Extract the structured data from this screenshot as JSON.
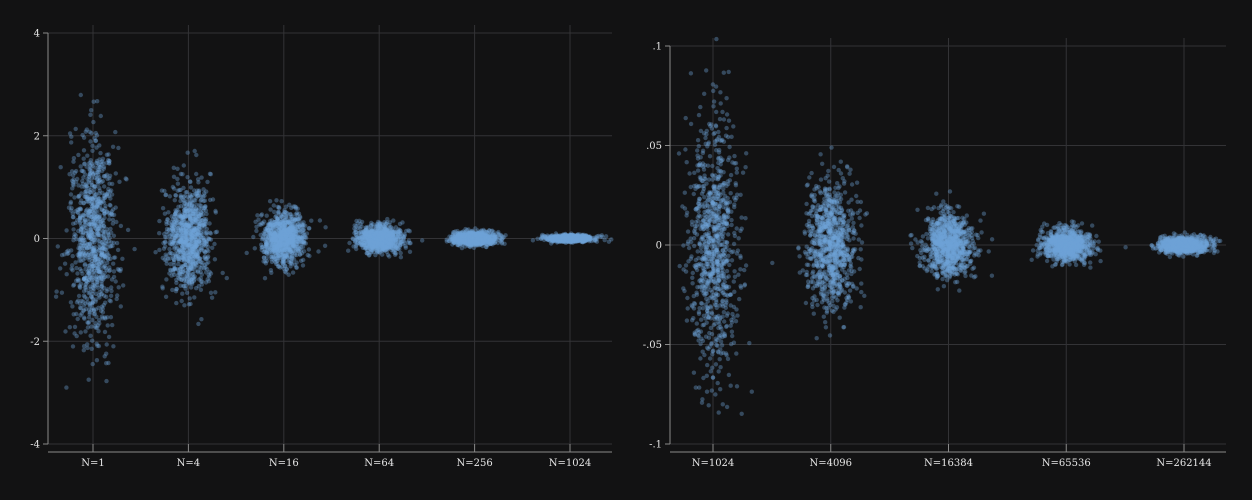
{
  "colors": {
    "background": "#121213",
    "point": "#6fa3d8",
    "grid": "#333336",
    "axis": "#8a8a8a",
    "text": "#e6e6e6"
  },
  "chart_data": [
    {
      "type": "scatter",
      "title": "",
      "xlabel": "",
      "ylabel": "",
      "grid": true,
      "categories": [
        "N=1",
        "N=4",
        "N=16",
        "N=64",
        "N=256",
        "N=1024"
      ],
      "ylim": [
        -4,
        4
      ],
      "yticks": [
        4,
        2,
        0,
        -2,
        -4
      ],
      "ytick_labels": [
        "4",
        "2",
        "0",
        "-2",
        "-4"
      ],
      "series_spread": [
        {
          "category": "N=1",
          "sd_y": 1.0,
          "y_min": -3.0,
          "y_max": 3.2,
          "points": 900
        },
        {
          "category": "N=4",
          "sd_y": 0.5,
          "y_min": -1.7,
          "y_max": 1.8,
          "points": 900
        },
        {
          "category": "N=16",
          "sd_y": 0.25,
          "y_min": -0.8,
          "y_max": 0.75,
          "points": 900
        },
        {
          "category": "N=64",
          "sd_y": 0.125,
          "y_min": -0.45,
          "y_max": 0.42,
          "points": 900
        },
        {
          "category": "N=256",
          "sd_y": 0.0625,
          "y_min": -0.22,
          "y_max": 0.2,
          "points": 900
        },
        {
          "category": "N=1024",
          "sd_y": 0.03125,
          "y_min": -0.1,
          "y_max": 0.1,
          "points": 900
        }
      ]
    },
    {
      "type": "scatter",
      "title": "",
      "xlabel": "",
      "ylabel": "",
      "grid": true,
      "categories": [
        "N=1024",
        "N=4096",
        "N=16384",
        "N=65536",
        "N=262144"
      ],
      "ylim": [
        -0.1,
        0.1
      ],
      "yticks": [
        0.1,
        0.05,
        0,
        -0.05,
        -0.1
      ],
      "ytick_labels": [
        ".1",
        ".05",
        "0",
        "-.05",
        "-.1"
      ],
      "series_spread": [
        {
          "category": "N=1024",
          "sd_y": 0.03125,
          "y_min": -0.085,
          "y_max": 0.107,
          "points": 900
        },
        {
          "category": "N=4096",
          "sd_y": 0.0156,
          "y_min": -0.047,
          "y_max": 0.06,
          "points": 900
        },
        {
          "category": "N=16384",
          "sd_y": 0.0078,
          "y_min": -0.026,
          "y_max": 0.028,
          "points": 900
        },
        {
          "category": "N=65536",
          "sd_y": 0.0039,
          "y_min": -0.014,
          "y_max": 0.012,
          "points": 900
        },
        {
          "category": "N=262144",
          "sd_y": 0.002,
          "y_min": -0.007,
          "y_max": 0.007,
          "points": 900
        }
      ]
    }
  ]
}
